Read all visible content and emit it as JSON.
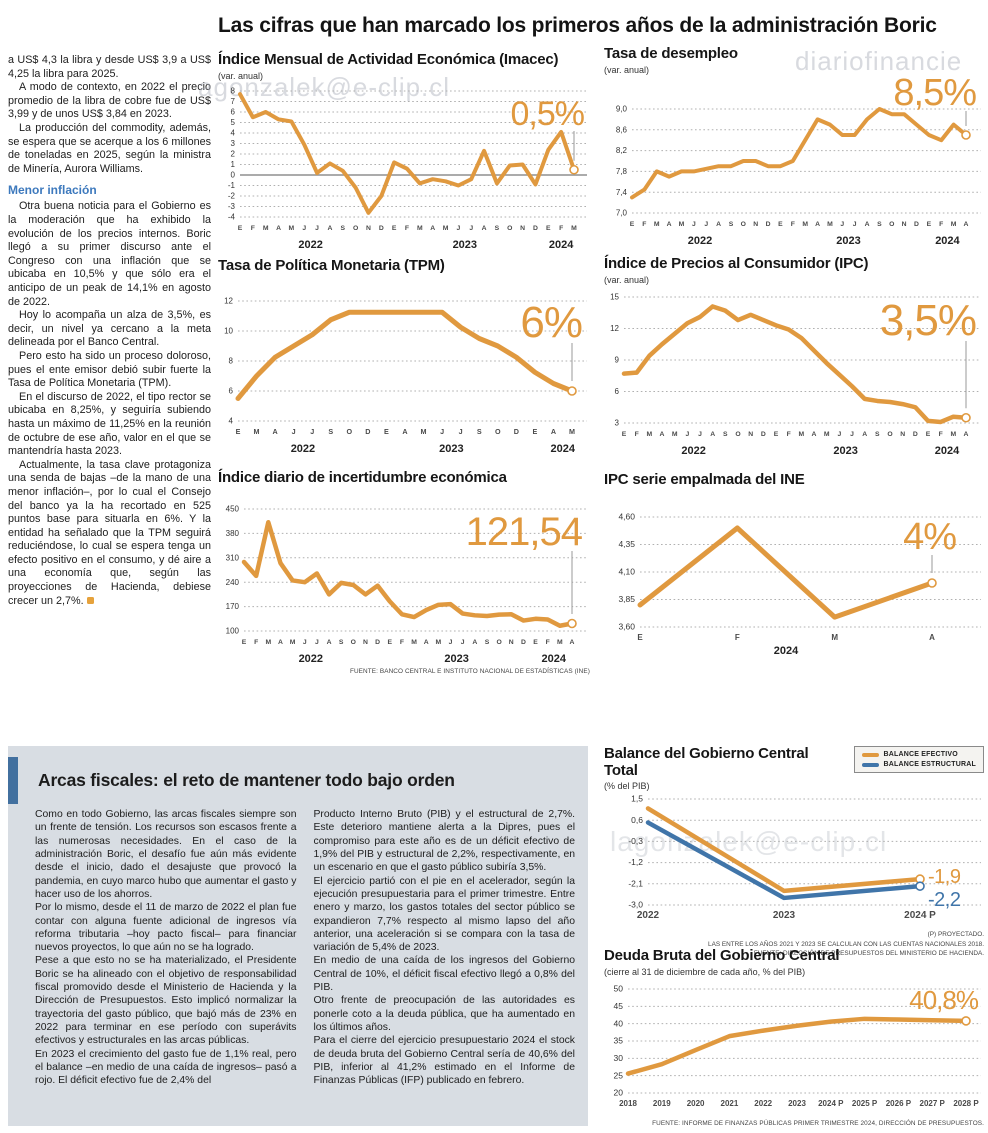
{
  "headline": "Las cifras que han marcado los primeros años de la administración Boric",
  "watermarks": {
    "wm1": "agonzalek@e-clip.cl",
    "wm2": "diariofinancie",
    "wm3": "ero#&@gonzalek@>@e-clip.cl",
    "wm4": "lagonzalek@e-clip.cl"
  },
  "left_article": {
    "blocks": [
      {
        "type": "p",
        "text": "a US$ 4,3 la libra y desde US$ 3,9 a US$ 4,25 la libra para 2025."
      },
      {
        "type": "p",
        "text": "A modo de contexto, en 2022 el precio promedio de la libra de cobre fue de US$ 3,99 y de unos US$ 3,84 en 2023."
      },
      {
        "type": "p",
        "text": "La producción del commodity, además, se espera que se acerque a los 6 millones de toneladas en 2025, según la ministra de Minería, Aurora Williams."
      },
      {
        "type": "h",
        "text": "Menor inflación"
      },
      {
        "type": "p",
        "text": "Otra buena noticia para el Gobierno es la moderación que ha exhibido la evolución de los precios internos. Boric llegó a su primer discurso ante el Congreso con una inflación que se ubicaba en 10,5% y que sólo era el anticipo de un peak de 14,1% en agosto de 2022."
      },
      {
        "type": "p",
        "text": "Hoy lo acompaña un alza de 3,5%, es decir, un nivel ya cercano a la meta delineada por el Banco Central."
      },
      {
        "type": "p",
        "text": "Pero esto ha sido un proceso doloroso, pues el ente emisor debió subir fuerte la Tasa de Política Monetaria (TPM)."
      },
      {
        "type": "p",
        "text": "En el discurso de 2022, el tipo rector se ubicaba en 8,25%, y seguiría subiendo hasta un máximo de 11,25% en la reunión de octubre de ese año, valor en el que se mantendría hasta 2023."
      },
      {
        "type": "p",
        "endmark": true,
        "text": "Actualmente, la tasa clave protagoniza una senda de bajas –de la mano de una menor inflación–, por lo cual el Consejo del banco ya la ha recortado en 525 puntos base para situarla en 6%. Y la entidad ha señalado que la TPM seguirá reduciéndose, lo cual se espera tenga un efecto positivo en el consumo, y dé aire a una economía que, según las proyecciones de Hacienda, debiese crecer un 2,7%."
      }
    ]
  },
  "fiscal": {
    "title": "Arcas fiscales: el reto de mantener todo bajo orden",
    "columns": [
      [
        "Como en todo Gobierno, las arcas fiscales siempre son un frente de tensión. Los recursos son escasos frente a las numerosas necesidades. En el caso de la administración Boric, el desafío fue aún más evidente desde el inicio, dado el desajuste que provocó la pandemia, en cuyo marco hubo que aumentar el gasto y hacer uso de los ahorros.",
        "Por lo mismo, desde el 11 de marzo de 2022 el plan fue contar con alguna fuente adicional de ingresos vía reforma tributaria –hoy pacto fiscal– para financiar nuevos proyectos, lo que aún no se ha logrado.",
        "Pese a que esto no se ha materializado, el Presidente Boric se ha alineado con el objetivo de responsabilidad fiscal promovido desde el Ministerio de Hacienda y la Dirección de Presupuestos. Esto implicó normalizar la trayectoria del gasto público, que bajó más de 23% en 2022 para terminar en ese período con superávits efectivos y estructurales en las arcas públicas.",
        "En 2023 el crecimiento del gasto fue de 1,1% real, pero el balance –en medio de una caída de ingresos– pasó a rojo. El déficit efectivo fue de 2,4% del"
      ],
      [
        "Producto Interno Bruto (PIB) y el estructural de 2,7%. Este deterioro mantiene alerta a la Dipres, pues el compromiso para este año es de un déficit efectivo de 1,9% del PIB y estructural de 2,2%, respectivamente, en un escenario en que el gasto público subiría 3,5%.",
        "El ejercicio partió con el pie en el acelerador, según la ejecución presupuestaria para el primer trimestre. Entre enero y marzo, los gastos totales del sector público se expandieron 7,7% respecto al mismo lapso del año anterior, una aceleración si se compara con la tasa de variación de 5,4% de 2023.",
        "En medio de una caída de los ingresos del Gobierno Central de 10%, el déficit fiscal efectivo llegó a 0,8% del PIB.",
        "Otro frente de preocupación de las autoridades es ponerle coto a la deuda pública, que ha aumentado en los últimos años.",
        "Para el cierre del ejercicio presupuestario 2024 el stock de deuda bruta del Gobierno Central sería de 40,6% del PIB, inferior al 41,2% estimado en el Informe de Finanzas Públicas (IFP) publicado en febrero."
      ]
    ]
  },
  "chart_data": {
    "imacec": {
      "type": "line",
      "title": "Índice Mensual de Actividad Económica (Imacec)",
      "subtitle": "(var. anual)",
      "x_labels": [
        "E",
        "F",
        "M",
        "A",
        "M",
        "J",
        "J",
        "A",
        "S",
        "O",
        "N",
        "D",
        "E",
        "F",
        "M",
        "A",
        "M",
        "J",
        "J",
        "A",
        "S",
        "O",
        "N",
        "D",
        "E",
        "F",
        "M"
      ],
      "year_labels": [
        {
          "text": "2022",
          "at": 5.5
        },
        {
          "text": "2023",
          "at": 17.5
        },
        {
          "text": "2024",
          "at": 25
        }
      ],
      "y_ticks": [
        8,
        7,
        6,
        5,
        4,
        3,
        2,
        1,
        0,
        -1,
        -2,
        -3,
        -4
      ],
      "ylim": [
        -4,
        8
      ],
      "zero_line": true,
      "values": [
        7.7,
        5.5,
        6.0,
        5.3,
        5.1,
        2.9,
        0.2,
        1.1,
        0.4,
        -1.2,
        -3.6,
        -2.0,
        1.2,
        0.6,
        -0.8,
        -0.4,
        -0.6,
        -1.0,
        -0.4,
        2.3,
        -0.8,
        0.9,
        1.0,
        -0.9,
        2.4,
        4.1,
        0.5
      ],
      "highlight": "0,5%",
      "line_color": "#e0993f"
    },
    "desempleo": {
      "type": "line",
      "title": "Tasa de desempleo",
      "subtitle": "(var. anual)",
      "x_labels": [
        "E",
        "F",
        "M",
        "A",
        "M",
        "J",
        "J",
        "A",
        "S",
        "O",
        "N",
        "D",
        "E",
        "F",
        "M",
        "A",
        "M",
        "J",
        "J",
        "A",
        "S",
        "O",
        "N",
        "D",
        "E",
        "F",
        "M",
        "A"
      ],
      "year_labels": [
        {
          "text": "2022",
          "at": 5.5
        },
        {
          "text": "2023",
          "at": 17.5
        },
        {
          "text": "2024",
          "at": 25.5
        }
      ],
      "y_ticks": [
        9.0,
        8.6,
        8.2,
        7.8,
        7.4,
        7.0
      ],
      "y_tick_labels": [
        "9,0",
        "8,6",
        "8,2",
        "7,8",
        "7,4",
        "7,0"
      ],
      "ylim": [
        7.0,
        9.0
      ],
      "values": [
        7.3,
        7.45,
        7.8,
        7.7,
        7.8,
        7.8,
        7.85,
        7.9,
        7.9,
        8.0,
        8.0,
        7.9,
        7.9,
        8.0,
        8.4,
        8.8,
        8.7,
        8.5,
        8.5,
        8.8,
        9.0,
        8.9,
        8.9,
        8.7,
        8.5,
        8.4,
        8.7,
        8.5
      ],
      "highlight": "8,5%",
      "line_color": "#e0993f"
    },
    "tpm": {
      "type": "line",
      "title": "Tasa de Política Monetaria (TPM)",
      "x_labels": [
        "E",
        "M",
        "A",
        "J",
        "J",
        "S",
        "O",
        "D",
        "E",
        "A",
        "M",
        "J",
        "J",
        "S",
        "O",
        "D",
        "E",
        "A",
        "M"
      ],
      "year_labels": [
        {
          "text": "2022",
          "at": 3.5
        },
        {
          "text": "2023",
          "at": 11.5
        },
        {
          "text": "2024",
          "at": 17.5
        }
      ],
      "y_ticks": [
        12,
        10,
        8,
        6,
        4
      ],
      "ylim": [
        4,
        12
      ],
      "values": [
        5.5,
        7.0,
        8.25,
        9.0,
        9.75,
        10.75,
        11.25,
        11.25,
        11.25,
        11.25,
        11.25,
        11.25,
        10.25,
        9.5,
        9.0,
        8.25,
        7.25,
        6.5,
        6.0
      ],
      "highlight": "6%",
      "line_color": "#e0993f"
    },
    "ipc": {
      "type": "line",
      "title": "Índice de Precios al Consumidor (IPC)",
      "subtitle": "(var. anual)",
      "x_labels": [
        "E",
        "F",
        "M",
        "A",
        "M",
        "J",
        "J",
        "A",
        "S",
        "O",
        "N",
        "D",
        "E",
        "F",
        "M",
        "A",
        "M",
        "J",
        "J",
        "A",
        "S",
        "O",
        "N",
        "D",
        "E",
        "F",
        "M",
        "A"
      ],
      "year_labels": [
        {
          "text": "2022",
          "at": 5.5
        },
        {
          "text": "2023",
          "at": 17.5
        },
        {
          "text": "2024",
          "at": 25.5
        }
      ],
      "y_ticks": [
        15,
        12,
        9,
        6,
        3
      ],
      "ylim": [
        3,
        15
      ],
      "values": [
        7.7,
        7.8,
        9.4,
        10.5,
        11.5,
        12.5,
        13.1,
        14.1,
        13.7,
        12.8,
        13.3,
        12.8,
        12.3,
        11.9,
        11.1,
        9.9,
        8.7,
        7.6,
        6.5,
        5.3,
        5.1,
        5.0,
        4.8,
        4.5,
        3.2,
        3.1,
        3.6,
        3.5
      ],
      "highlight": "3,5%",
      "line_color": "#e0993f"
    },
    "incertidumbre": {
      "type": "line",
      "title": "Índice diario de incertidumbre económica",
      "x_labels": [
        "E",
        "F",
        "M",
        "A",
        "M",
        "J",
        "J",
        "A",
        "S",
        "O",
        "N",
        "D",
        "E",
        "F",
        "M",
        "A",
        "M",
        "J",
        "J",
        "A",
        "S",
        "O",
        "N",
        "D",
        "E",
        "F",
        "M",
        "A"
      ],
      "year_labels": [
        {
          "text": "2022",
          "at": 5.5
        },
        {
          "text": "2023",
          "at": 17.5
        },
        {
          "text": "2024",
          "at": 25.5
        }
      ],
      "y_ticks": [
        450,
        380,
        310,
        240,
        170,
        100
      ],
      "ylim": [
        100,
        450
      ],
      "values": [
        298,
        258,
        412,
        295,
        245,
        240,
        265,
        205,
        238,
        232,
        205,
        230,
        185,
        148,
        140,
        160,
        175,
        177,
        150,
        145,
        143,
        147,
        148,
        130,
        135,
        133,
        115,
        121.54
      ],
      "highlight": "121,54",
      "line_color": "#e0993f",
      "source": "FUENTE: BANCO CENTRAL E INSTITUTO NACIONAL DE ESTADÍSTICAS (INE)"
    },
    "ipc_empalmada": {
      "type": "line",
      "title": "IPC serie empalmada del INE",
      "x_labels": [
        "E",
        "F",
        "M",
        "A"
      ],
      "year_labels": [
        {
          "text": "2024",
          "at": 1.5
        }
      ],
      "y_ticks": [
        4.6,
        4.35,
        4.1,
        3.85,
        3.6
      ],
      "y_tick_labels": [
        "4,60",
        "4,35",
        "4,10",
        "3,85",
        "3,60"
      ],
      "ylim": [
        3.6,
        4.6
      ],
      "values": [
        3.8,
        4.5,
        3.69,
        4.0
      ],
      "highlight": "4%",
      "line_color": "#e0993f"
    },
    "balance": {
      "type": "line",
      "title": "Balance del Gobierno Central Total",
      "subtitle": "(% del PIB)",
      "x_labels": [
        "2022",
        "2023",
        "2024 P"
      ],
      "y_ticks": [
        1.5,
        0.6,
        -0.3,
        -1.2,
        -2.1,
        -3.0
      ],
      "y_tick_labels": [
        "1,5",
        "0,6",
        "-0,3",
        "-1,2",
        "-2,1",
        "-3,0"
      ],
      "ylim": [
        -3.0,
        1.5
      ],
      "series": [
        {
          "name": "BALANCE EFECTIVO",
          "color": "#e0993f",
          "values": [
            1.1,
            -2.4,
            -1.9
          ],
          "end_label": "-1,9"
        },
        {
          "name": "BALANCE ESTRUCTURAL",
          "color": "#4075a9",
          "values": [
            0.5,
            -2.7,
            -2.2
          ],
          "end_label": "-2,2"
        }
      ],
      "legend": [
        {
          "label": "BALANCE EFECTIVO",
          "color": "#e0993f"
        },
        {
          "label": "BALANCE ESTRUCTURAL",
          "color": "#4075a9"
        }
      ],
      "footnotes": [
        "(P) PROYECTADO.",
        "LAS ENTRE LOS AÑOS 2021 Y 2023 SE CALCULAN  CON LAS CUENTAS NACIONALES 2018.",
        "FUENTE: DIRECCIÓN DE PRESUPUESTOS DEL MINISTERIO DE HACIENDA."
      ]
    },
    "deuda": {
      "type": "line",
      "title": "Deuda Bruta del Gobierno Central",
      "subtitle": "(cierre al 31 de diciembre de cada año, % del PIB)",
      "x_labels": [
        "2018",
        "2019",
        "2020",
        "2021",
        "2022",
        "2023",
        "2024 P",
        "2025 P",
        "2026 P",
        "2027 P",
        "2028 P"
      ],
      "y_ticks": [
        50,
        45,
        40,
        35,
        30,
        25,
        20
      ],
      "ylim": [
        20,
        50
      ],
      "values": [
        25.6,
        28.3,
        32.4,
        36.4,
        38.0,
        39.4,
        40.6,
        41.4,
        41.2,
        41.0,
        40.8
      ],
      "highlight": "40,8%",
      "line_color": "#e0993f",
      "source": "FUENTE: INFORME DE FINANZAS PÚBLICAS PRIMER TRIMESTRE 2024, DIRECCIÓN DE PRESUPUESTOS."
    }
  }
}
